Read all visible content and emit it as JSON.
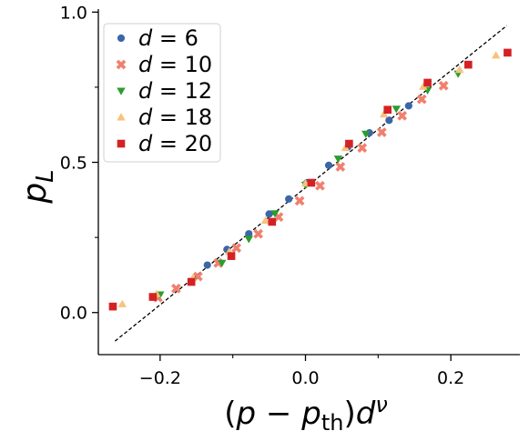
{
  "chart_data": {
    "type": "scatter",
    "xlabel": "(p − p_th)d^ν",
    "ylabel": "p_L",
    "xlim": [
      -0.285,
      0.295
    ],
    "ylim": [
      -0.14,
      1.01
    ],
    "x_ticks": [
      -0.2,
      0.0,
      0.2
    ],
    "x_tick_labels": [
      "−0.2",
      "0.0",
      "0.2"
    ],
    "x_minor_ticks": [
      -0.1,
      0.1
    ],
    "y_ticks": [
      0.0,
      0.5,
      1.0
    ],
    "y_tick_labels": [
      "0.0",
      "0.5",
      "1.0"
    ],
    "y_minor_ticks": [
      0.25,
      0.75
    ],
    "grid": false,
    "legend_position": "top-left",
    "reference_line": {
      "style": "dashed",
      "color": "#000000",
      "x": [
        -0.262,
        0.277
      ],
      "y": [
        -0.095,
        0.955
      ]
    },
    "series": [
      {
        "name": "d = 6",
        "d": "6",
        "marker": "circle",
        "color": "#3b66a8",
        "x": [
          -0.135,
          -0.108,
          -0.078,
          -0.05,
          -0.023,
          0.002,
          0.032,
          0.058,
          0.088,
          0.115,
          0.142
        ],
        "y": [
          0.158,
          0.21,
          0.262,
          0.328,
          0.378,
          0.432,
          0.49,
          0.55,
          0.598,
          0.64,
          0.688
        ]
      },
      {
        "name": "d = 10",
        "d": "10",
        "marker": "x",
        "color": "#f0806e",
        "x": [
          -0.203,
          -0.178,
          -0.148,
          -0.12,
          -0.095,
          -0.065,
          -0.037,
          -0.008,
          0.02,
          0.048,
          0.078,
          0.105,
          0.133,
          0.16,
          0.19
        ],
        "y": [
          0.05,
          0.08,
          0.12,
          0.165,
          0.215,
          0.262,
          0.318,
          0.372,
          0.422,
          0.485,
          0.548,
          0.6,
          0.655,
          0.71,
          0.755
        ]
      },
      {
        "name": "d = 12",
        "d": "12",
        "marker": "triangle-down",
        "color": "#2a9d2e",
        "x": [
          -0.2,
          -0.155,
          -0.115,
          -0.078,
          -0.042,
          0.0,
          0.045,
          0.083,
          0.125,
          0.168,
          0.21
        ],
        "y": [
          0.06,
          0.105,
          0.165,
          0.245,
          0.33,
          0.425,
          0.512,
          0.595,
          0.678,
          0.74,
          0.795
        ]
      },
      {
        "name": "d = 18",
        "d": "18",
        "marker": "triangle-up",
        "color": "#f9c27c",
        "x": [
          -0.252,
          -0.205,
          -0.155,
          -0.105,
          -0.055,
          0.0,
          0.055,
          0.108,
          0.162,
          0.212,
          0.262
        ],
        "y": [
          0.028,
          0.062,
          0.115,
          0.202,
          0.306,
          0.43,
          0.548,
          0.66,
          0.752,
          0.808,
          0.856
        ]
      },
      {
        "name": "d = 20",
        "d": "20",
        "marker": "square",
        "color": "#d42124",
        "x": [
          -0.265,
          -0.21,
          -0.157,
          -0.102,
          -0.046,
          0.008,
          0.06,
          0.113,
          0.168,
          0.224,
          0.278
        ],
        "y": [
          0.02,
          0.052,
          0.102,
          0.188,
          0.302,
          0.432,
          0.562,
          0.675,
          0.765,
          0.825,
          0.865
        ]
      }
    ]
  }
}
